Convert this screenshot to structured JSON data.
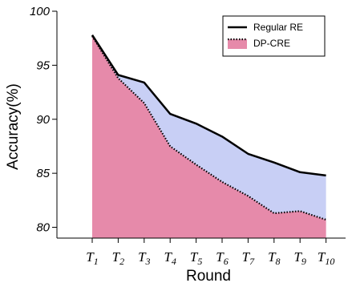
{
  "chart_data": {
    "type": "area",
    "x": [
      "T1",
      "T2",
      "T3",
      "T4",
      "T5",
      "T6",
      "T7",
      "T8",
      "T9",
      "T10"
    ],
    "x_ticks": [
      {
        "base": "T",
        "sub": "1"
      },
      {
        "base": "T",
        "sub": "2"
      },
      {
        "base": "T",
        "sub": "3"
      },
      {
        "base": "T",
        "sub": "4"
      },
      {
        "base": "T",
        "sub": "5"
      },
      {
        "base": "T",
        "sub": "6"
      },
      {
        "base": "T",
        "sub": "7"
      },
      {
        "base": "T",
        "sub": "8"
      },
      {
        "base": "T",
        "sub": "9"
      },
      {
        "base": "T",
        "sub": "10"
      }
    ],
    "series": [
      {
        "name": "Regular RE",
        "values": [
          97.8,
          94.1,
          93.4,
          90.5,
          89.6,
          88.4,
          86.8,
          86.0,
          85.1,
          84.8
        ],
        "line_color": "#000000",
        "line_style": "solid",
        "fill_color": "#c8cff5"
      },
      {
        "name": "DP-CRE",
        "values": [
          97.7,
          93.8,
          91.5,
          87.5,
          85.8,
          84.2,
          82.9,
          81.3,
          81.5,
          80.7
        ],
        "line_color": "#000000",
        "line_style": "dotted",
        "fill_color": "#e68aaa"
      }
    ],
    "xlabel": "Round",
    "ylabel": "Accuracy(%)",
    "ylim": [
      79,
      100
    ],
    "y_ticks": [
      "80",
      "85",
      "90",
      "95",
      "100"
    ],
    "legend_position": "top-right",
    "grid": false
  }
}
